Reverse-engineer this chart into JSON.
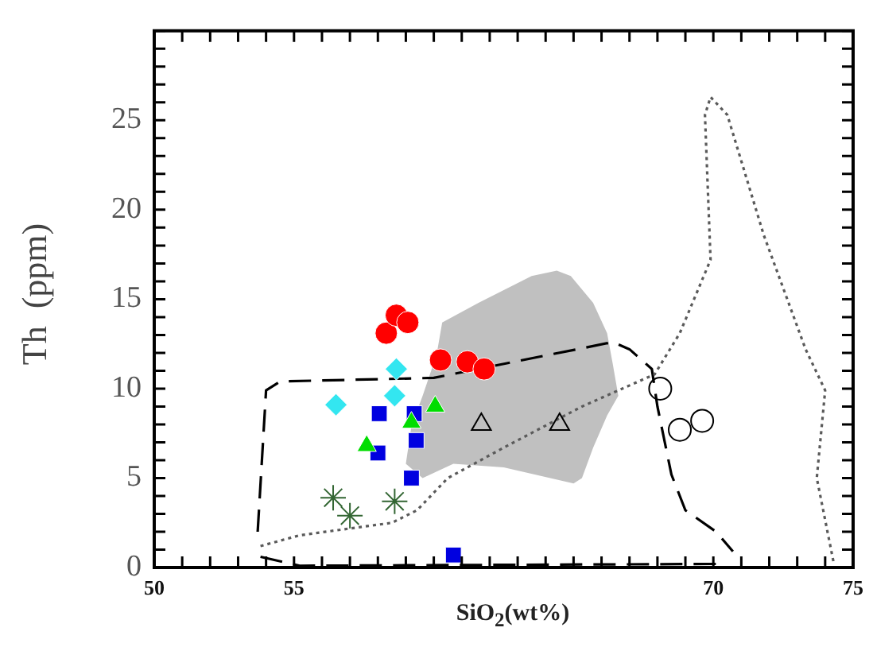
{
  "chart_data": {
    "type": "scatter",
    "xlabel": "SiO$_{2}$(wt%)",
    "ylabel": "Th  (ppm)",
    "xlim": [
      50,
      75
    ],
    "ylim": [
      0,
      30
    ],
    "xticks": [
      50,
      {
        "value": 51,
        "label": null
      },
      {
        "value": 52,
        "label": null
      },
      {
        "value": 53,
        "label": null
      },
      {
        "value": 54,
        "label": null
      },
      55,
      {
        "value": 56,
        "label": null
      },
      {
        "value": 57,
        "label": null
      },
      {
        "value": 58,
        "label": null
      },
      {
        "value": 59,
        "label": null
      },
      {
        "value": 60,
        "label": null
      },
      {
        "value": 61,
        "label": null
      },
      {
        "value": 62,
        "label": null
      },
      {
        "value": 63,
        "label": null
      },
      {
        "value": 64,
        "label": null
      },
      {
        "value": 65,
        "label": null
      },
      {
        "value": 66,
        "label": null
      },
      {
        "value": 67,
        "label": null
      },
      {
        "value": 68,
        "label": null
      },
      {
        "value": 69,
        "label": null
      },
      70,
      {
        "value": 71,
        "label": null
      },
      {
        "value": 72,
        "label": null
      },
      {
        "value": 73,
        "label": null
      },
      {
        "value": 74,
        "label": null
      },
      75
    ],
    "yticks": [
      0,
      {
        "value": 1,
        "label": null
      },
      {
        "value": 2,
        "label": null
      },
      {
        "value": 3,
        "label": null
      },
      {
        "value": 4,
        "label": null
      },
      5,
      {
        "value": 6,
        "label": null
      },
      {
        "value": 7,
        "label": null
      },
      {
        "value": 8,
        "label": null
      },
      {
        "value": 9,
        "label": null
      },
      10,
      {
        "value": 11,
        "label": null
      },
      {
        "value": 12,
        "label": null
      },
      {
        "value": 13,
        "label": null
      },
      {
        "value": 14,
        "label": null
      },
      15,
      {
        "value": 16,
        "label": null
      },
      {
        "value": 17,
        "label": null
      },
      {
        "value": 18,
        "label": null
      },
      {
        "value": 19,
        "label": null
      },
      20,
      {
        "value": 21,
        "label": null
      },
      {
        "value": 22,
        "label": null
      },
      {
        "value": 23,
        "label": null
      },
      {
        "value": 24,
        "label": null
      },
      25,
      {
        "value": 26,
        "label": null
      },
      {
        "value": 27,
        "label": null
      },
      {
        "value": 28,
        "label": null
      },
      {
        "value": 29,
        "label": null
      },
      {
        "value": 30,
        "label": null
      }
    ],
    "grid": false,
    "legend": false,
    "series": [
      {
        "type": "area",
        "color": "#c0c0c0",
        "marker": "none",
        "x": [
          64.4,
          64.9,
          65.7,
          66.2,
          66.4,
          66.6,
          66.2,
          65.7,
          65.3,
          65.0,
          62.5,
          60.7,
          59.6,
          59.0,
          59.2,
          59.6,
          60.1,
          60.3,
          61.6,
          63.5,
          64.4
        ],
        "values": [
          16.6,
          16.3,
          14.8,
          13.1,
          11.4,
          9.6,
          8.5,
          6.7,
          5.0,
          4.7,
          5.6,
          5.8,
          5.0,
          5.8,
          7.9,
          9.6,
          11.9,
          13.7,
          14.8,
          16.3,
          16.6
        ]
      },
      {
        "type": "line",
        "color": "#000000",
        "marker": "none",
        "line_style": "dashed",
        "x": [
          53.7,
          54.0,
          54.5,
          60.0,
          66.4,
          67.0,
          67.8,
          68.0,
          68.5,
          69.0,
          70.1,
          70.7
        ],
        "values": [
          2.0,
          9.9,
          10.4,
          10.6,
          12.6,
          12.2,
          11.1,
          9.0,
          5.2,
          3.2,
          2.0,
          0.9
        ]
      },
      {
        "type": "line",
        "color": "#000000",
        "marker": "none",
        "line_style": "dashed",
        "x": [
          53.8,
          55.2,
          70.1
        ],
        "values": [
          0.6,
          0.1,
          0.2
        ]
      },
      {
        "type": "line",
        "color": "#5a5a5a",
        "marker": "none",
        "line_style": "dotted",
        "x": [
          53.8,
          55.2,
          58.5,
          59.4,
          60.5,
          62.5,
          65.3,
          67.9,
          68.8,
          69.9,
          69.7,
          69.9,
          70.5,
          71.8,
          73.3,
          74.0,
          73.7,
          74.3
        ],
        "values": [
          1.2,
          1.8,
          2.5,
          3.2,
          5.0,
          6.7,
          9.0,
          10.8,
          13.1,
          17.2,
          25.3,
          26.3,
          25.3,
          18.6,
          12.2,
          9.9,
          5.0,
          0.3
        ]
      },
      {
        "color": "#ff0000",
        "marker": "circle",
        "x": [
          58.3,
          58.66,
          59.07,
          60.24,
          61.2,
          61.8
        ],
        "values": [
          13.1,
          14.1,
          13.7,
          11.6,
          11.5,
          11.1
        ]
      },
      {
        "color": "#33e6f0",
        "marker": "diamond",
        "x": [
          58.66,
          58.6,
          56.5
        ],
        "values": [
          11.1,
          9.6,
          9.1
        ]
      },
      {
        "color": "#0000e0",
        "marker": "square",
        "x": [
          58.05,
          59.3,
          59.37,
          58.0,
          59.2,
          60.7
        ],
        "values": [
          8.6,
          8.6,
          7.1,
          6.4,
          5.0,
          0.7
        ]
      },
      {
        "color": "#00dd00",
        "marker": "triangle",
        "x": [
          60.05,
          59.2,
          57.6
        ],
        "values": [
          9.0,
          8.1,
          6.8
        ]
      },
      {
        "color": "#000000",
        "marker": "triangle",
        "x": [
          61.7,
          64.5
        ],
        "values": [
          8.0,
          8.0
        ]
      },
      {
        "color": "#000000",
        "marker": "circle",
        "x": [
          68.1,
          68.8,
          69.6
        ],
        "values": [
          10.0,
          7.7,
          8.2
        ]
      },
      {
        "color": "#336633",
        "marker": "cross",
        "x": [
          56.4,
          57.0,
          58.6
        ],
        "values": [
          3.9,
          2.9,
          3.7
        ]
      }
    ]
  }
}
